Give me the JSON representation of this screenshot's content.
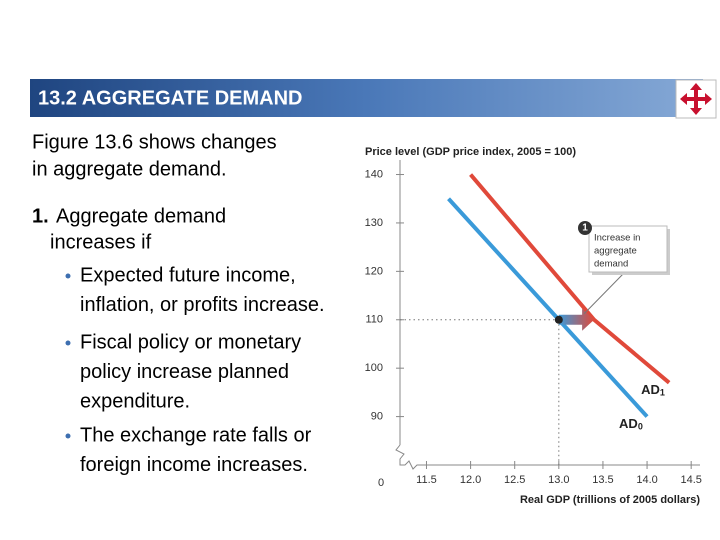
{
  "slide": {
    "title": "13.2  AGGREGATE DEMAND",
    "intro": [
      "Figure 13.6 shows changes",
      "in aggregate demand."
    ],
    "point": {
      "number": "1.",
      "lines": [
        "Aggregate demand",
        "increases if"
      ],
      "bullets": [
        [
          "Expected future income,",
          "inflation, or profits increase."
        ],
        [
          "Fiscal policy or monetary",
          "policy increase planned",
          "expenditure."
        ],
        [
          "The exchange rate falls or",
          "foreign income increases."
        ]
      ]
    }
  },
  "chart_data": {
    "type": "line",
    "ylabel": "Price level (GDP price index, 2005 = 100)",
    "xlabel": "Real GDP (trillions of 2005 dollars)",
    "origin": 0,
    "xlim": [
      11.2,
      14.6
    ],
    "xticks": [
      11.5,
      {
        "value": 12.0,
        "label": "12.0"
      },
      12.5,
      {
        "value": 13.0,
        "label": "13.0"
      },
      13.5,
      {
        "value": 14.0,
        "label": "14.0"
      },
      14.5
    ],
    "ylim": [
      80,
      143
    ],
    "yticks": [
      90,
      100,
      110,
      120,
      130,
      140
    ],
    "series": [
      {
        "name": "AD0",
        "color": "#3a9ad9",
        "x": [
          11.75,
          14.0
        ],
        "values": [
          135,
          90
        ]
      },
      {
        "name": "AD1",
        "color": "#e0493a",
        "x": [
          12.0,
          13.4,
          14.25
        ],
        "values": [
          140,
          110,
          97
        ]
      }
    ],
    "point": {
      "x": 13.0,
      "y": 110
    },
    "arrow": {
      "x": [
        13.0,
        13.4
      ],
      "y": 110
    },
    "annotation": {
      "number": "1",
      "text": [
        "Increase in",
        "aggregate",
        "demand"
      ]
    }
  }
}
